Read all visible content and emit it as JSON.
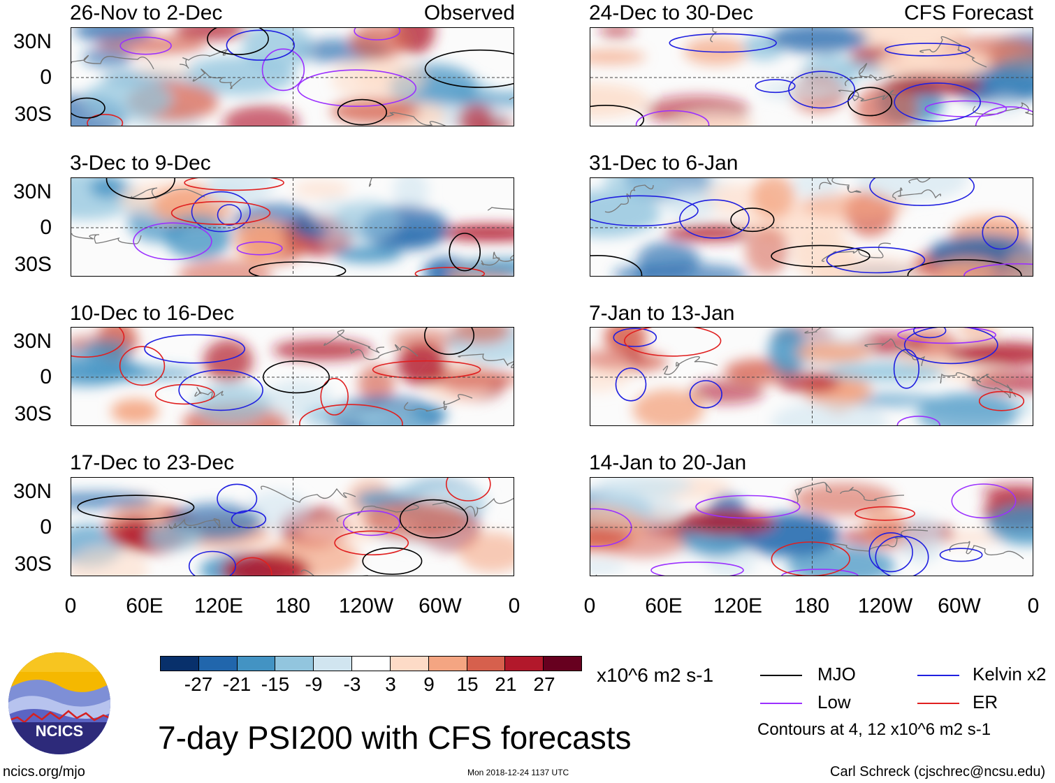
{
  "panels_observed": {
    "tag": "Observed",
    "items": [
      {
        "title": "26-Nov to 2-Dec"
      },
      {
        "title": "3-Dec to 9-Dec"
      },
      {
        "title": "10-Dec to 16-Dec"
      },
      {
        "title": "17-Dec to 23-Dec"
      }
    ]
  },
  "panels_forecast": {
    "tag": "CFS Forecast",
    "items": [
      {
        "title": "24-Dec to 30-Dec"
      },
      {
        "title": "31-Dec to 6-Jan"
      },
      {
        "title": "7-Jan to 13-Jan"
      },
      {
        "title": "14-Jan to 20-Jan"
      }
    ]
  },
  "lat_labels": [
    "30N",
    "0",
    "30S"
  ],
  "lon_labels": [
    "0",
    "60E",
    "120E",
    "180",
    "120W",
    "60W",
    "0"
  ],
  "colorbar": {
    "labels": [
      "-27",
      "-21",
      "-15",
      "-9",
      "-3",
      "3",
      "9",
      "15",
      "21",
      "27"
    ],
    "units": "x10^6 m2 s-1",
    "colors": [
      "#08306b",
      "#2166ac",
      "#4393c3",
      "#92c5de",
      "#d1e5f0",
      "#ffffff",
      "#fddbc7",
      "#f4a582",
      "#d6604d",
      "#b2182b",
      "#67001f"
    ]
  },
  "legend": {
    "mjo": {
      "label": "MJO",
      "color": "#000000"
    },
    "kelvin": {
      "label": "Kelvin x2",
      "color": "#1f1fe0"
    },
    "low": {
      "label": "Low",
      "color": "#9b30ff"
    },
    "er": {
      "label": "ER",
      "color": "#e01f1f"
    },
    "contours_note": "Contours at 4, 12 x10^6 m2 s-1"
  },
  "logo": {
    "text": "NCICS"
  },
  "main_title": "7-day PSI200 with CFS forecasts",
  "footer": {
    "url": "ncics.org/mjo",
    "timestamp": "Mon 2018-12-24 1137 UTC",
    "credit": "Carl Schreck (cjschrec@ncsu.edu)"
  }
}
